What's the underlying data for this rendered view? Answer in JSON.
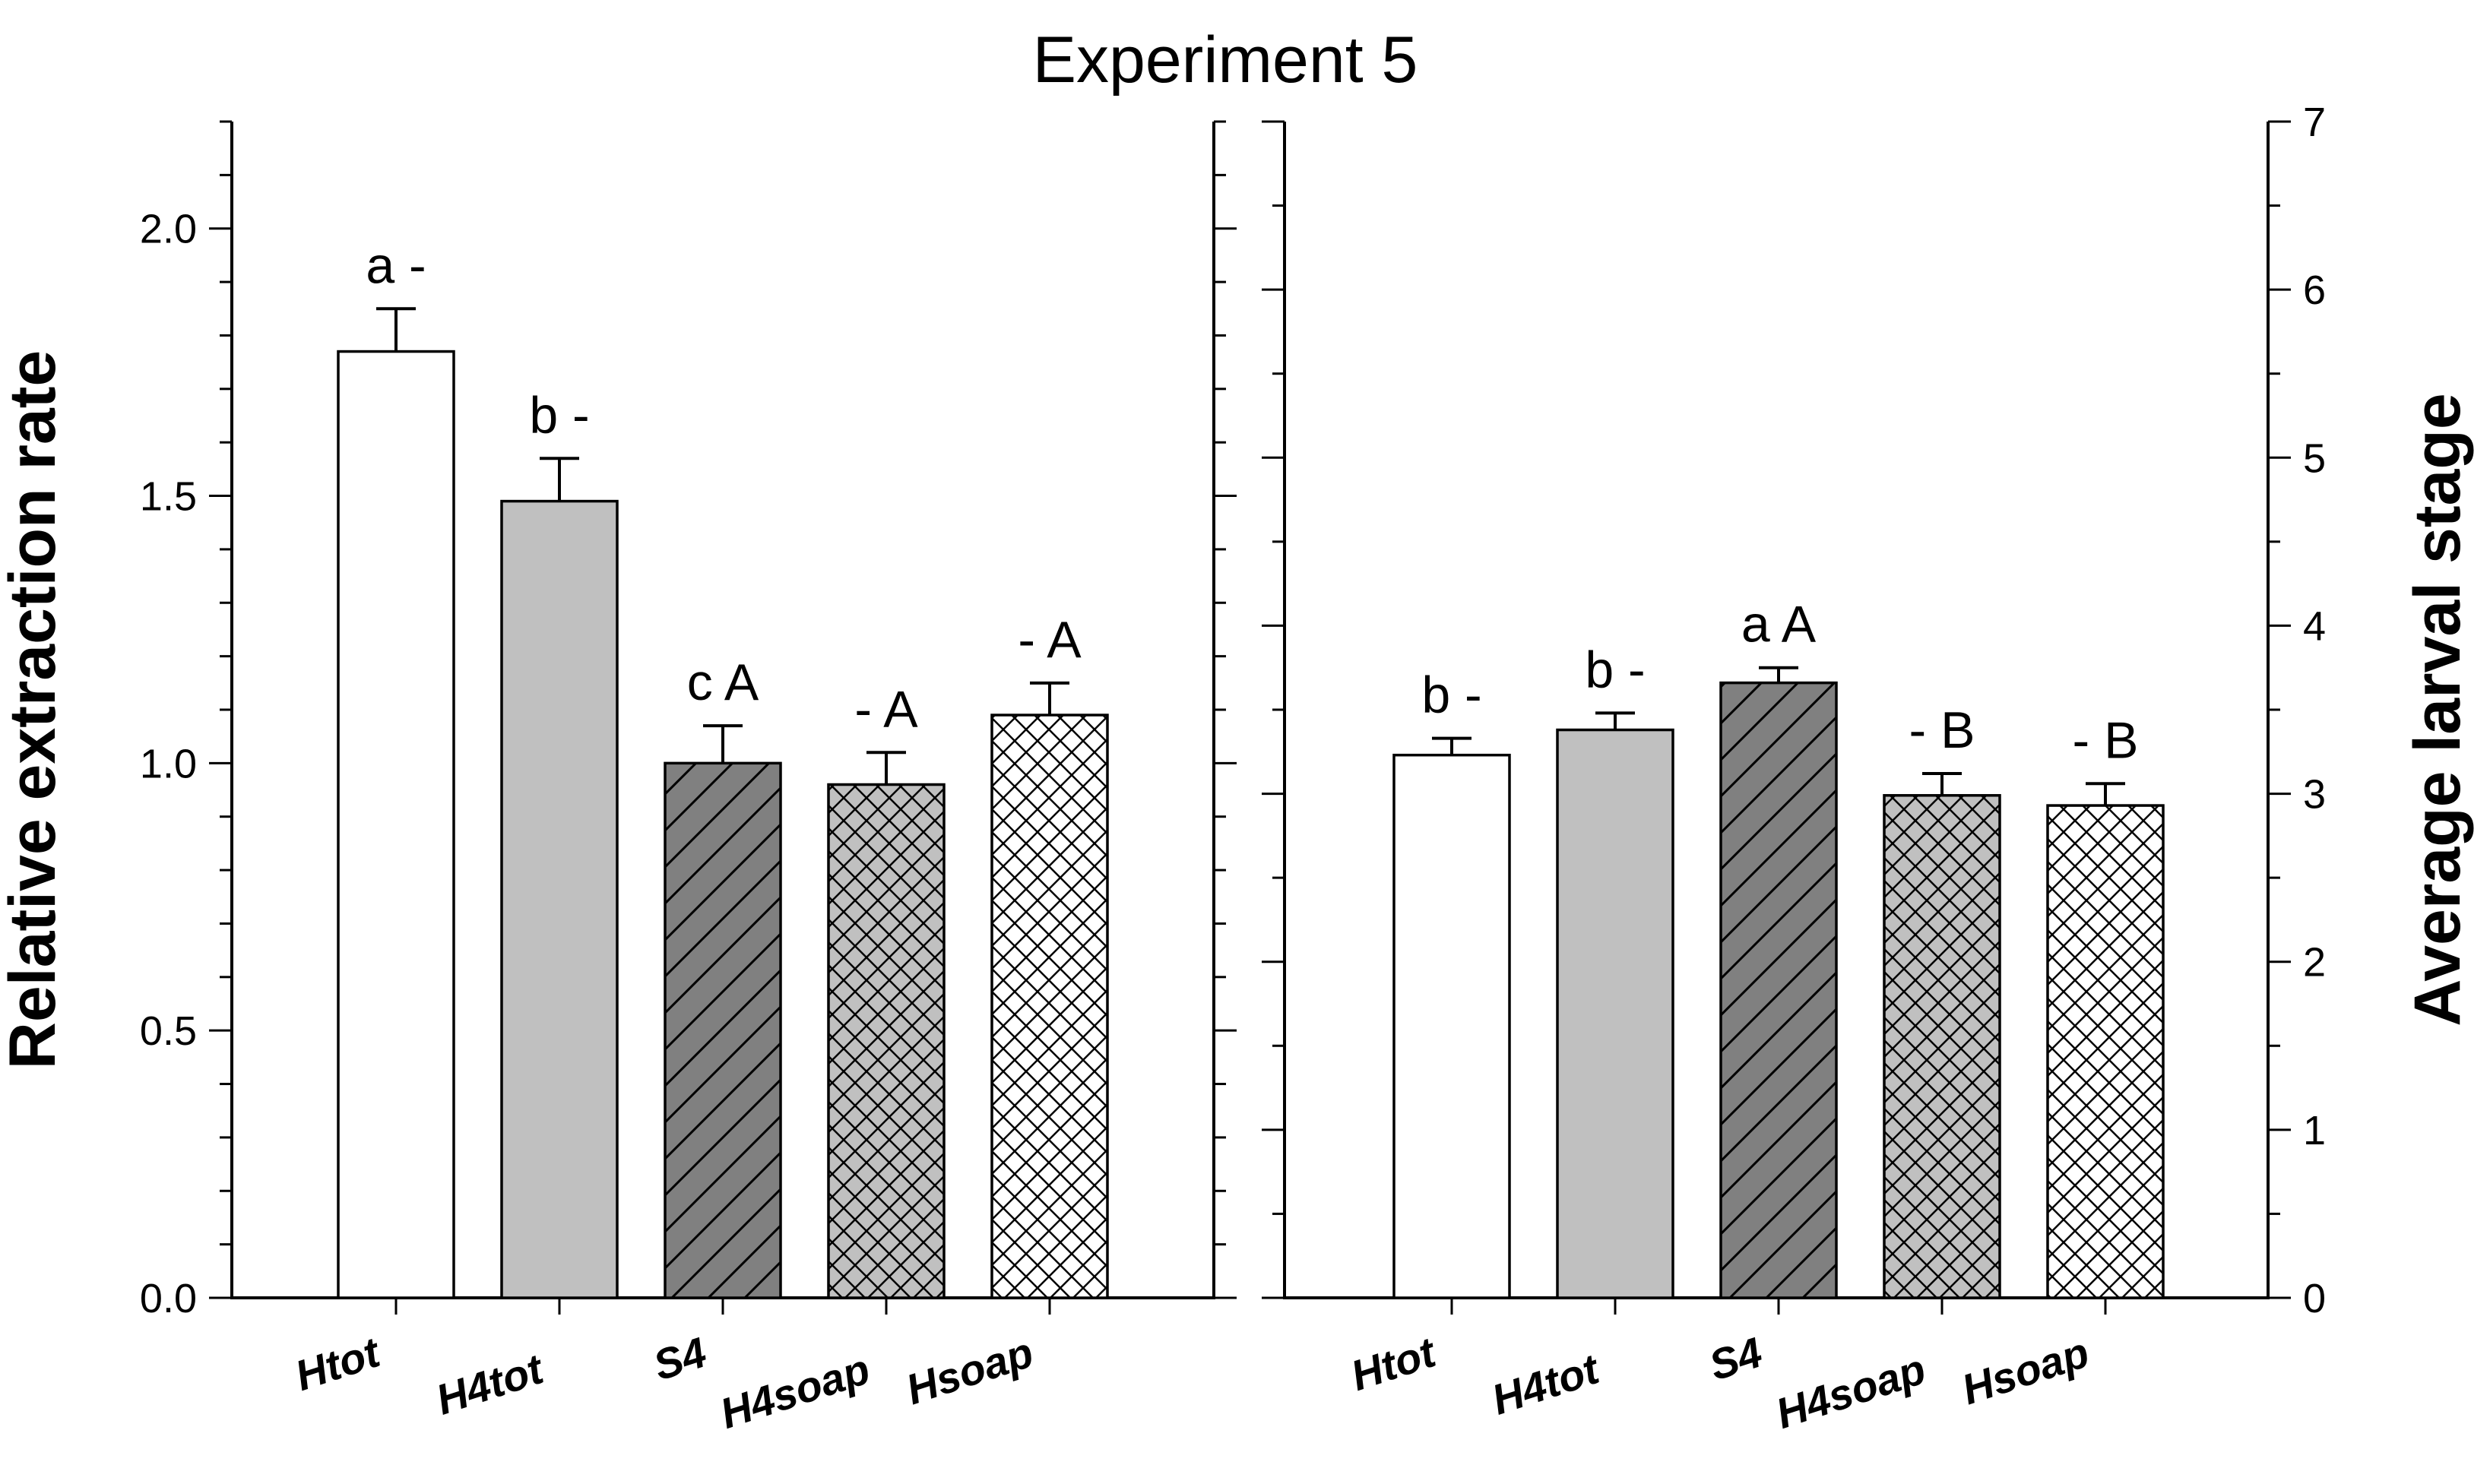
{
  "title": "Experiment 5",
  "colors": {
    "white": "#ffffff",
    "light_gray": "#c0c0c0",
    "dark_gray": "#808080",
    "outline": "#000000"
  },
  "chart_data": [
    {
      "type": "bar",
      "panel": "left",
      "ylabel": "Relative extraction rate",
      "yaxis_side": "left",
      "ylim": [
        0,
        2.2
      ],
      "yticks": [
        "0.0",
        "0.5",
        "1.0",
        "1.5",
        "2.0"
      ],
      "categories": [
        "Htot",
        "H4tot",
        "S4",
        "H4soap",
        "Hsoap"
      ],
      "values": [
        1.77,
        1.49,
        1.0,
        0.96,
        1.09
      ],
      "errors": [
        0.08,
        0.08,
        0.07,
        0.06,
        0.06
      ],
      "fills": [
        "white",
        "light_gray",
        "diagonal_dark",
        "crosshatch_gray",
        "crosshatch_white"
      ],
      "annotations": [
        "a -",
        "b -",
        "c A",
        "- A",
        "- A"
      ]
    },
    {
      "type": "bar",
      "panel": "right",
      "ylabel": "Average larval stage",
      "yaxis_side": "right",
      "ylim": [
        0,
        7
      ],
      "yticks": [
        "0",
        "1",
        "2",
        "3",
        "4",
        "5",
        "6",
        "7"
      ],
      "categories": [
        "Htot",
        "H4tot",
        "S4",
        "H4soap",
        "Hsoap"
      ],
      "values": [
        3.23,
        3.38,
        3.66,
        2.99,
        2.93
      ],
      "errors": [
        0.1,
        0.1,
        0.09,
        0.13,
        0.13
      ],
      "fills": [
        "white",
        "light_gray",
        "diagonal_dark",
        "crosshatch_gray",
        "crosshatch_white"
      ],
      "annotations": [
        "b -",
        "b -",
        "a A",
        "- B",
        "- B"
      ]
    }
  ]
}
